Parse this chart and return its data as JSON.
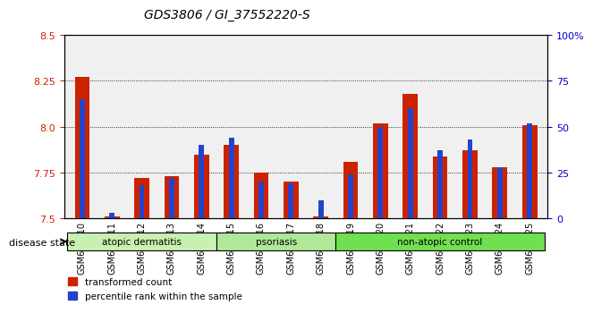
{
  "title": "GDS3806 / GI_37552220-S",
  "samples": [
    "GSM663510",
    "GSM663511",
    "GSM663512",
    "GSM663513",
    "GSM663514",
    "GSM663515",
    "GSM663516",
    "GSM663517",
    "GSM663518",
    "GSM663519",
    "GSM663520",
    "GSM663521",
    "GSM663522",
    "GSM663523",
    "GSM663524",
    "GSM663525"
  ],
  "red_values": [
    8.27,
    7.51,
    7.72,
    7.73,
    7.85,
    7.9,
    7.75,
    7.7,
    7.51,
    7.81,
    8.02,
    8.18,
    7.84,
    7.87,
    7.78,
    8.01
  ],
  "blue_values": [
    0.65,
    0.03,
    0.18,
    0.22,
    0.4,
    0.44,
    0.2,
    0.19,
    0.1,
    0.24,
    0.5,
    0.6,
    0.37,
    0.43,
    0.28,
    0.52
  ],
  "ylim_left": [
    7.5,
    8.5
  ],
  "ylim_right": [
    0,
    100
  ],
  "yticks_left": [
    7.5,
    7.75,
    8.0,
    8.25,
    8.5
  ],
  "yticks_right": [
    0,
    25,
    50,
    75,
    100
  ],
  "ytick_labels_right": [
    "0",
    "25",
    "50",
    "75",
    "100%"
  ],
  "groups": [
    {
      "label": "atopic dermatitis",
      "start": 0,
      "end": 5,
      "color": "#c8f0b0"
    },
    {
      "label": "psoriasis",
      "start": 5,
      "end": 9,
      "color": "#b8f0a0"
    },
    {
      "label": "non-atopic control",
      "start": 9,
      "end": 16,
      "color": "#70e050"
    }
  ],
  "group_colors": [
    "#c8eeb8",
    "#b0e898",
    "#50cc30"
  ],
  "red_color": "#cc2200",
  "blue_color": "#2244cc",
  "bar_width": 0.5,
  "base_value": 7.5,
  "disease_state_label": "disease state",
  "legend_red": "transformed count",
  "legend_blue": "percentile rank within the sample",
  "grid_color": "#000000",
  "background_color": "#ffffff",
  "tick_label_color_left": "#cc2200",
  "tick_label_color_right": "#0000cc"
}
